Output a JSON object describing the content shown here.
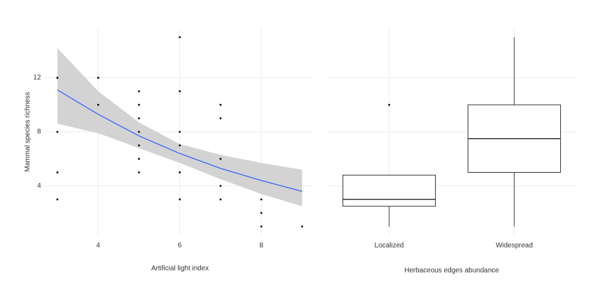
{
  "chart_data": [
    {
      "type": "scatter",
      "x_label": "Artificial light index",
      "y_label": "Mammal species richness",
      "x": [
        3,
        3,
        3,
        3,
        4,
        4,
        5,
        5,
        5,
        5,
        5,
        5,
        5,
        6,
        6,
        6,
        6,
        6,
        6,
        7,
        7,
        7,
        7,
        7,
        8,
        8,
        8,
        9
      ],
      "values": [
        12,
        8,
        5,
        3,
        12,
        10,
        11,
        10,
        9,
        8,
        7,
        6,
        5,
        15,
        11,
        8,
        7,
        5,
        3,
        10,
        9,
        6,
        4,
        3,
        3,
        2,
        1,
        1
      ],
      "color": "#000000",
      "fit": {
        "color": "#3366ff",
        "band_color": "#d3d3d3",
        "x": [
          3,
          4,
          5,
          6,
          7,
          8,
          9
        ],
        "y": [
          11.1,
          9.3,
          7.7,
          6.4,
          5.3,
          4.4,
          3.6
        ],
        "lower": [
          8.6,
          7.9,
          6.8,
          5.7,
          4.5,
          3.4,
          2.5
        ],
        "upper": [
          14.2,
          11.0,
          8.7,
          7.1,
          6.3,
          5.7,
          5.2
        ]
      },
      "xlim": [
        2.7,
        9.26
      ],
      "xticks": [
        4,
        6,
        8
      ],
      "ylim": [
        0.3,
        15.7
      ],
      "yticks": [
        4,
        8,
        12
      ],
      "grid": true
    },
    {
      "type": "box",
      "x_label": "Herbaceous edges abundance",
      "categories": [
        "Localized",
        "Widespread"
      ],
      "boxes": [
        {
          "min": 1,
          "q1": 2.5,
          "median": 3,
          "q3": 4.8,
          "max": 4.8,
          "outliers": [
            10
          ]
        },
        {
          "min": 1,
          "q1": 5,
          "median": 7.5,
          "q3": 10,
          "max": 15,
          "outliers": []
        }
      ],
      "ylim": [
        0.3,
        15.7
      ],
      "grid": true
    }
  ]
}
